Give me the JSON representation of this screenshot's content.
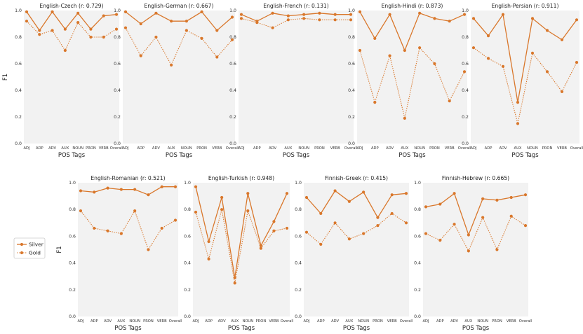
{
  "colors": {
    "line": "#d9772b",
    "panel_bg": "#f2f2f2",
    "legend_border": "#cccccc"
  },
  "shared": {
    "xlabel": "POS Tags",
    "ylabel": "F1",
    "categories": [
      "ADJ",
      "ADP",
      "ADV",
      "AUX",
      "NOUN",
      "PRON",
      "VERB",
      "Overall"
    ],
    "yticks": [
      "0.0",
      "0.2",
      "0.4",
      "0.6",
      "0.8",
      "1.0"
    ],
    "ylim": [
      0,
      1
    ]
  },
  "legend": {
    "silver": "Silver",
    "gold": "Gold"
  },
  "chart_data": [
    {
      "type": "line",
      "title": "English-Czech (r: 0.729)",
      "series": [
        {
          "name": "Silver",
          "values": [
            0.99,
            0.85,
            0.99,
            0.86,
            0.98,
            0.86,
            0.96,
            0.97
          ]
        },
        {
          "name": "Gold",
          "values": [
            0.92,
            0.82,
            0.85,
            0.7,
            0.91,
            0.8,
            0.8,
            0.86
          ]
        }
      ]
    },
    {
      "type": "line",
      "title": "English-German (r: 0.667)",
      "series": [
        {
          "name": "Silver",
          "values": [
            0.99,
            0.9,
            0.98,
            0.92,
            0.92,
            0.99,
            0.85,
            0.95
          ]
        },
        {
          "name": "Gold",
          "values": [
            0.87,
            0.66,
            0.8,
            0.59,
            0.85,
            0.79,
            0.65,
            0.78
          ]
        }
      ]
    },
    {
      "type": "line",
      "title": "English-French (r: 0.131)",
      "series": [
        {
          "name": "Silver",
          "values": [
            0.97,
            0.92,
            0.98,
            0.96,
            0.97,
            0.98,
            0.97,
            0.97
          ]
        },
        {
          "name": "Gold",
          "values": [
            0.94,
            0.91,
            0.87,
            0.93,
            0.94,
            0.93,
            0.93,
            0.93
          ]
        }
      ]
    },
    {
      "type": "line",
      "title": "English-Hindi (r: 0.873)",
      "series": [
        {
          "name": "Silver",
          "values": [
            0.99,
            0.79,
            0.97,
            0.7,
            0.98,
            0.94,
            0.92,
            0.97
          ]
        },
        {
          "name": "Gold",
          "values": [
            0.7,
            0.31,
            0.66,
            0.19,
            0.72,
            0.6,
            0.32,
            0.54
          ]
        }
      ]
    },
    {
      "type": "line",
      "title": "English-Persian (r: 0.911)",
      "series": [
        {
          "name": "Silver",
          "values": [
            0.94,
            0.81,
            0.97,
            0.31,
            0.94,
            0.85,
            0.78,
            0.93
          ]
        },
        {
          "name": "Gold",
          "values": [
            0.72,
            0.64,
            0.58,
            0.15,
            0.68,
            0.54,
            0.39,
            0.61
          ]
        }
      ]
    },
    {
      "type": "line",
      "title": "English-Romanian (r: 0.521)",
      "series": [
        {
          "name": "Silver",
          "values": [
            0.94,
            0.93,
            0.96,
            0.95,
            0.95,
            0.91,
            0.97,
            0.97
          ]
        },
        {
          "name": "Gold",
          "values": [
            0.79,
            0.66,
            0.64,
            0.62,
            0.79,
            0.5,
            0.66,
            0.72
          ]
        }
      ]
    },
    {
      "type": "line",
      "title": "English-Turkish (r: 0.948)",
      "series": [
        {
          "name": "Silver",
          "values": [
            0.97,
            0.56,
            0.89,
            0.29,
            0.92,
            0.53,
            0.71,
            0.92
          ]
        },
        {
          "name": "Gold",
          "values": [
            0.78,
            0.43,
            0.8,
            0.25,
            0.79,
            0.51,
            0.64,
            0.66
          ]
        }
      ]
    },
    {
      "type": "line",
      "title": "Finnish-Greek (r: 0.415)",
      "series": [
        {
          "name": "Silver",
          "values": [
            0.89,
            0.77,
            0.94,
            0.86,
            0.93,
            0.74,
            0.91,
            0.92
          ]
        },
        {
          "name": "Gold",
          "values": [
            0.63,
            0.54,
            0.7,
            0.58,
            0.62,
            0.68,
            0.77,
            0.7
          ]
        }
      ]
    },
    {
      "type": "line",
      "title": "Finnish-Hebrew (r: 0.665)",
      "series": [
        {
          "name": "Silver",
          "values": [
            0.82,
            0.84,
            0.92,
            0.61,
            0.88,
            0.87,
            0.89,
            0.91
          ]
        },
        {
          "name": "Gold",
          "values": [
            0.62,
            0.57,
            0.69,
            0.49,
            0.74,
            0.5,
            0.75,
            0.68
          ]
        }
      ]
    }
  ]
}
